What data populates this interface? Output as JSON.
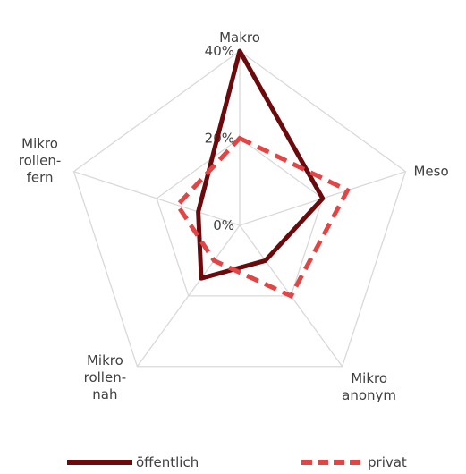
{
  "chart_data": {
    "type": "radar",
    "axes": [
      "Makro",
      "Meso",
      "Mikro\nanonym",
      "Mikro\nrollen-\nnah",
      "Mikro\nrollen-\nfern"
    ],
    "ticks": [
      0,
      20,
      40
    ],
    "tick_labels": [
      "0%",
      "20%",
      "40%"
    ],
    "rmax": 40,
    "series": [
      {
        "name": "öffentlich",
        "values": [
          40,
          20,
          10,
          15,
          10
        ],
        "color": "#6b0a0c",
        "style": "solid"
      },
      {
        "name": "privat",
        "values": [
          20,
          26,
          20,
          10,
          15
        ],
        "color": "#e04646",
        "style": "dashed"
      }
    ],
    "grid": true,
    "legend_position": "bottom"
  }
}
